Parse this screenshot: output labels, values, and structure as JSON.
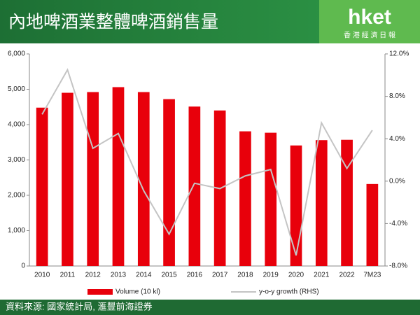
{
  "branding": {
    "logo": "hket",
    "tagline": "香 港 經 濟 日 報"
  },
  "chart_data": {
    "type": "combo",
    "title": "內地啤酒業整體啤酒銷售量",
    "source": "資料來源: 國家統計局, 滙豐前海證券",
    "categories": [
      "2010",
      "2011",
      "2012",
      "2013",
      "2014",
      "2015",
      "2016",
      "2017",
      "2018",
      "2019",
      "2020",
      "2021",
      "2022",
      "7M23"
    ],
    "series": [
      {
        "name": "Volume (10 kl)",
        "type": "bar",
        "color": "#e8000b",
        "values": [
          4480,
          4900,
          4920,
          5060,
          4920,
          4720,
          4510,
          4400,
          3810,
          3770,
          3410,
          3560,
          3570,
          2320
        ]
      },
      {
        "name": "y-o-y growth (RHS)",
        "type": "line",
        "axis": "y2",
        "color": "#c4c4c4",
        "values": [
          6.3,
          10.5,
          3.1,
          4.5,
          -0.9,
          -5.0,
          -0.2,
          -0.7,
          0.5,
          1.1,
          -7.0,
          5.5,
          1.2,
          4.8
        ]
      }
    ],
    "ylim": [
      0,
      6000
    ],
    "yticks": [
      0,
      {
        "value": 1000,
        "label": "1,000"
      },
      {
        "value": 2000,
        "label": "2,000"
      },
      {
        "value": 3000,
        "label": "3,000"
      },
      {
        "value": 4000,
        "label": "4,000"
      },
      {
        "value": 5000,
        "label": "5,000"
      },
      {
        "value": 6000,
        "label": "6,000"
      }
    ],
    "y2lim": [
      -8,
      12
    ],
    "y2ticks": [
      {
        "value": -8,
        "label": "-8.0%"
      },
      {
        "value": -4,
        "label": "-4.0%"
      },
      {
        "value": 0,
        "label": "0.0%"
      },
      {
        "value": 4,
        "label": "4.0%"
      },
      {
        "value": 8,
        "label": "8.0%"
      },
      {
        "value": 12,
        "label": "12.0%"
      }
    ],
    "grid": false,
    "legend": "bottom"
  }
}
